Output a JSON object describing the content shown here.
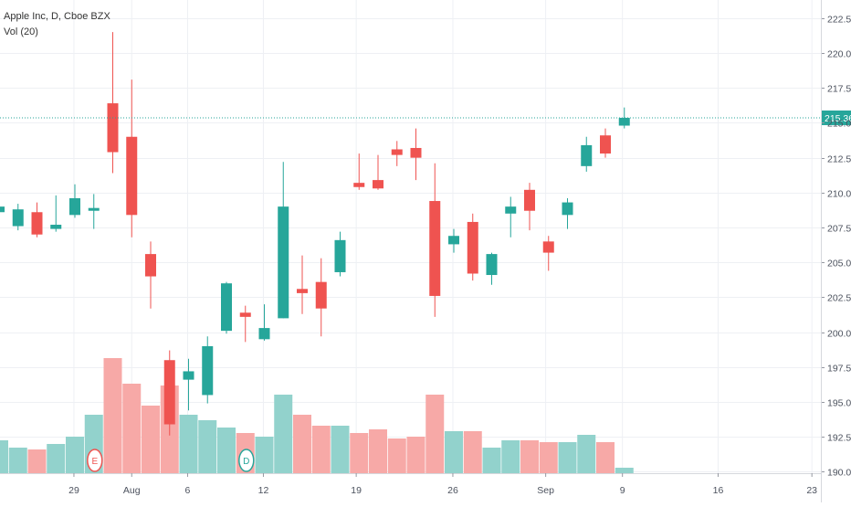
{
  "legend": {
    "title": "Apple Inc, D, Cboe BZX",
    "volume": "Vol (20)"
  },
  "chart_data": {
    "type": "candlestick",
    "x_tick_labels": [
      "29",
      "Aug",
      "6",
      "12",
      "19",
      "26",
      "Sep",
      "9",
      "16",
      "23"
    ],
    "y_tick_labels": [
      "190.00",
      "192.50",
      "195.00",
      "197.50",
      "200.00",
      "202.50",
      "205.00",
      "207.50",
      "210.00",
      "212.50",
      "215.00",
      "217.50",
      "220.00",
      "222.50"
    ],
    "ylim": [
      189.9,
      223.8
    ],
    "last_price_label": "215.36",
    "last_price": 215.36,
    "colors": {
      "up": "#26a69a",
      "down": "#ef5350",
      "up_volume": "#92d2cc",
      "down_volume": "#f7a9a7",
      "last_price": "#26a69a",
      "grid": "#eef0f4",
      "axis_text": "#4c525e",
      "event_earnings": "#ef5350",
      "event_dividend": "#26a69a"
    },
    "candles": [
      {
        "open": 208.6,
        "high": 209.2,
        "low": 207.9,
        "close": 209.0
      },
      {
        "open": 207.6,
        "high": 209.2,
        "low": 207.3,
        "close": 208.8
      },
      {
        "open": 208.6,
        "high": 209.3,
        "low": 206.8,
        "close": 207.0
      },
      {
        "open": 207.4,
        "high": 209.8,
        "low": 207.2,
        "close": 207.7
      },
      {
        "open": 208.4,
        "high": 210.6,
        "low": 208.2,
        "close": 209.6
      },
      {
        "open": 208.7,
        "high": 209.9,
        "low": 207.4,
        "close": 208.9
      },
      {
        "open": 216.4,
        "high": 221.5,
        "low": 211.4,
        "close": 212.9
      },
      {
        "open": 214.0,
        "high": 218.1,
        "low": 206.8,
        "close": 208.4
      },
      {
        "open": 205.6,
        "high": 206.5,
        "low": 201.7,
        "close": 204.0
      },
      {
        "open": 198.0,
        "high": 198.7,
        "low": 192.6,
        "close": 193.4
      },
      {
        "open": 196.6,
        "high": 198.1,
        "low": 194.4,
        "close": 197.2
      },
      {
        "open": 195.5,
        "high": 199.7,
        "low": 194.9,
        "close": 199.0
      },
      {
        "open": 200.1,
        "high": 203.6,
        "low": 199.9,
        "close": 203.5
      },
      {
        "open": 201.4,
        "high": 201.9,
        "low": 199.3,
        "close": 201.1
      },
      {
        "open": 199.5,
        "high": 202.0,
        "low": 199.4,
        "close": 200.3
      },
      {
        "open": 201.0,
        "high": 212.2,
        "low": 201.0,
        "close": 209.0
      },
      {
        "open": 203.1,
        "high": 205.5,
        "low": 201.3,
        "close": 202.8
      },
      {
        "open": 203.6,
        "high": 205.3,
        "low": 199.7,
        "close": 201.7
      },
      {
        "open": 204.3,
        "high": 207.2,
        "low": 204.0,
        "close": 206.6
      },
      {
        "open": 210.7,
        "high": 212.8,
        "low": 210.2,
        "close": 210.4
      },
      {
        "open": 210.9,
        "high": 212.7,
        "low": 210.2,
        "close": 210.3
      },
      {
        "open": 213.1,
        "high": 213.7,
        "low": 211.9,
        "close": 212.7
      },
      {
        "open": 213.2,
        "high": 214.6,
        "low": 210.9,
        "close": 212.5
      },
      {
        "open": 209.4,
        "high": 212.1,
        "low": 201.1,
        "close": 202.6
      },
      {
        "open": 206.3,
        "high": 207.4,
        "low": 205.7,
        "close": 206.9
      },
      {
        "open": 207.9,
        "high": 208.5,
        "low": 203.7,
        "close": 204.2
      },
      {
        "open": 204.1,
        "high": 205.7,
        "low": 203.4,
        "close": 205.6
      },
      {
        "open": 208.5,
        "high": 209.7,
        "low": 206.8,
        "close": 209.0
      },
      {
        "open": 210.2,
        "high": 210.7,
        "low": 207.3,
        "close": 208.7
      },
      {
        "open": 206.5,
        "high": 206.9,
        "low": 204.4,
        "close": 205.7
      },
      {
        "open": 208.4,
        "high": 209.6,
        "low": 207.4,
        "close": 209.3
      },
      {
        "open": 211.9,
        "high": 214.0,
        "low": 211.5,
        "close": 213.4
      },
      {
        "open": 214.1,
        "high": 214.6,
        "low": 212.5,
        "close": 212.8
      },
      {
        "open": 214.8,
        "high": 216.1,
        "low": 214.6,
        "close": 215.36
      }
    ],
    "volume_relative": [
      0.18,
      0.14,
      0.13,
      0.16,
      0.2,
      0.32,
      0.63,
      0.49,
      0.37,
      0.48,
      0.32,
      0.29,
      0.25,
      0.22,
      0.2,
      0.43,
      0.32,
      0.26,
      0.26,
      0.22,
      0.24,
      0.19,
      0.2,
      0.43,
      0.23,
      0.23,
      0.14,
      0.18,
      0.18,
      0.17,
      0.17,
      0.21,
      0.17,
      0.03
    ],
    "events": [
      {
        "label": "E",
        "type": "earnings",
        "candle_index": 5
      },
      {
        "label": "D",
        "type": "dividend",
        "candle_index": 13
      }
    ]
  }
}
